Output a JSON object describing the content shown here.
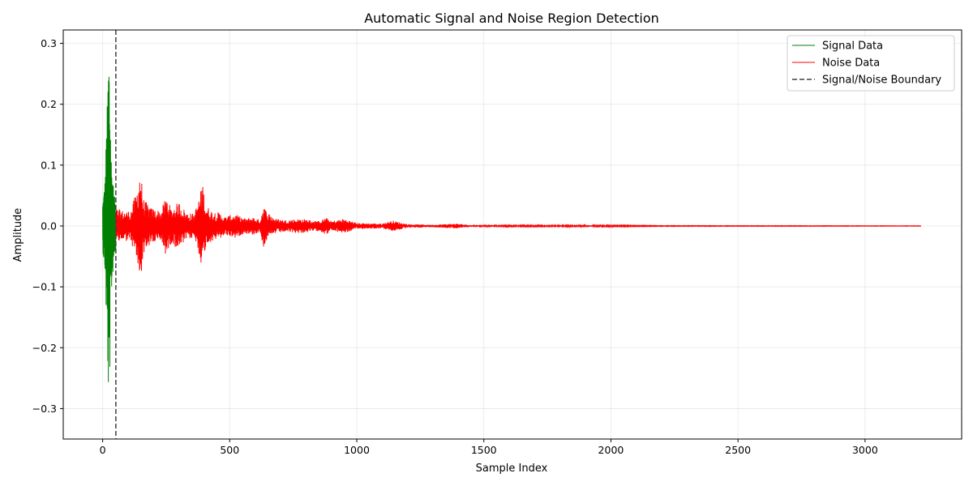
{
  "chart_data": {
    "type": "line",
    "title": "Automatic Signal and Noise Region Detection",
    "xlabel": "Sample Index",
    "ylabel": "Amplitude",
    "xlim": [
      -155,
      3380
    ],
    "ylim": [
      -0.35,
      0.322
    ],
    "xticks": [
      0,
      500,
      1000,
      1500,
      2000,
      2500,
      3000
    ],
    "xtick_labels": [
      "0",
      "500",
      "1000",
      "1500",
      "2000",
      "2500",
      "3000"
    ],
    "yticks": [
      -0.3,
      -0.2,
      -0.1,
      0.0,
      0.1,
      0.2,
      0.3
    ],
    "ytick_labels": [
      "−0.3",
      "−0.2",
      "−0.1",
      "0.0",
      "0.1",
      "0.2",
      "0.3"
    ],
    "grid": true,
    "legend_position": "upper-right",
    "boundary": 52,
    "x_max": 3220,
    "series": [
      {
        "name": "Signal Data",
        "color": "#008000",
        "x_range": [
          0,
          52
        ],
        "envelope": [
          [
            0,
            0.04
          ],
          [
            5,
            0.06
          ],
          [
            10,
            0.08
          ],
          [
            14,
            0.15
          ],
          [
            18,
            0.2
          ],
          [
            21,
            0.25
          ],
          [
            24,
            0.32
          ],
          [
            27,
            0.28
          ],
          [
            30,
            0.2
          ],
          [
            34,
            0.12
          ],
          [
            40,
            0.08
          ],
          [
            46,
            0.05
          ],
          [
            52,
            0.04
          ]
        ]
      },
      {
        "name": "Noise Data",
        "color": "#ff0000",
        "x_range": [
          52,
          3220
        ],
        "envelope": [
          [
            52,
            0.03
          ],
          [
            80,
            0.025
          ],
          [
            110,
            0.025
          ],
          [
            135,
            0.06
          ],
          [
            148,
            0.1
          ],
          [
            160,
            0.045
          ],
          [
            190,
            0.03
          ],
          [
            230,
            0.025
          ],
          [
            250,
            0.05
          ],
          [
            270,
            0.028
          ],
          [
            300,
            0.04
          ],
          [
            330,
            0.022
          ],
          [
            360,
            0.02
          ],
          [
            385,
            0.055
          ],
          [
            392,
            0.078
          ],
          [
            405,
            0.035
          ],
          [
            430,
            0.025
          ],
          [
            460,
            0.022
          ],
          [
            480,
            0.015
          ],
          [
            520,
            0.02
          ],
          [
            560,
            0.012
          ],
          [
            590,
            0.015
          ],
          [
            620,
            0.01
          ],
          [
            632,
            0.035
          ],
          [
            645,
            0.025
          ],
          [
            680,
            0.012
          ],
          [
            720,
            0.01
          ],
          [
            780,
            0.012
          ],
          [
            850,
            0.008
          ],
          [
            880,
            0.014
          ],
          [
            900,
            0.008
          ],
          [
            950,
            0.012
          ],
          [
            1000,
            0.005
          ],
          [
            1100,
            0.004
          ],
          [
            1140,
            0.009
          ],
          [
            1200,
            0.003
          ],
          [
            1300,
            0.002
          ],
          [
            1390,
            0.004
          ],
          [
            1450,
            0.0015
          ],
          [
            1600,
            0.001
          ],
          [
            1900,
            0.0012
          ],
          [
            2200,
            0.0005
          ],
          [
            2500,
            0.0004
          ],
          [
            2800,
            0.0004
          ],
          [
            3220,
            0.0003
          ]
        ]
      }
    ],
    "legend": [
      {
        "label": "Signal Data",
        "style": "solid",
        "color": "#008000"
      },
      {
        "label": "Noise Data",
        "style": "solid",
        "color": "#ff0000"
      },
      {
        "label": "Signal/Noise Boundary",
        "style": "dashed",
        "color": "#404040"
      }
    ]
  }
}
